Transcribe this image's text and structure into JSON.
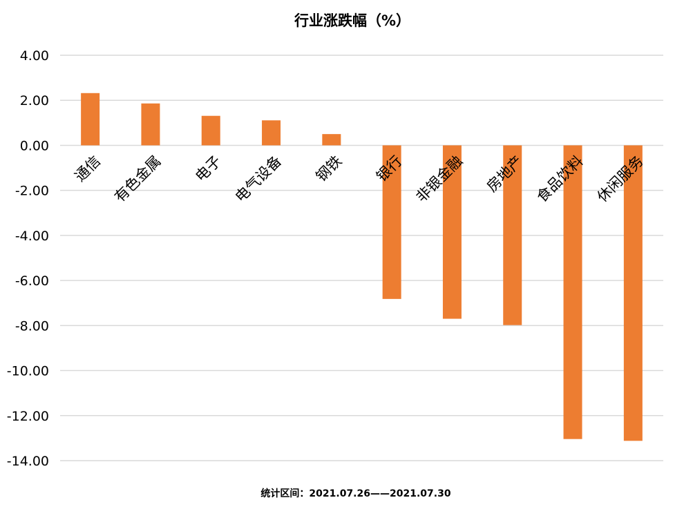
{
  "chart_data": {
    "type": "bar",
    "title": "行业涨跌幅（%）",
    "categories": [
      "通信",
      "有色金属",
      "电子",
      "电气设备",
      "钢铁",
      "银行",
      "非银金融",
      "房地产",
      "食品饮料",
      "休闲服务"
    ],
    "values": [
      2.32,
      1.86,
      1.31,
      1.11,
      0.5,
      -6.82,
      -7.7,
      -7.98,
      -13.04,
      -13.12
    ],
    "ylim": [
      -14,
      4
    ],
    "yticks": [
      "4.00",
      "2.00",
      "0.00",
      "-2.00",
      "-4.00",
      "-6.00",
      "-8.00",
      "-10.00",
      "-12.00",
      "-14.00"
    ],
    "xlabel": "",
    "ylabel": "",
    "grid": true,
    "legend": "none",
    "bar_color": "#ED7D31",
    "grid_color": "#D9D9D9",
    "footnote": "统计区间：2021.07.26——2021.07.30"
  }
}
